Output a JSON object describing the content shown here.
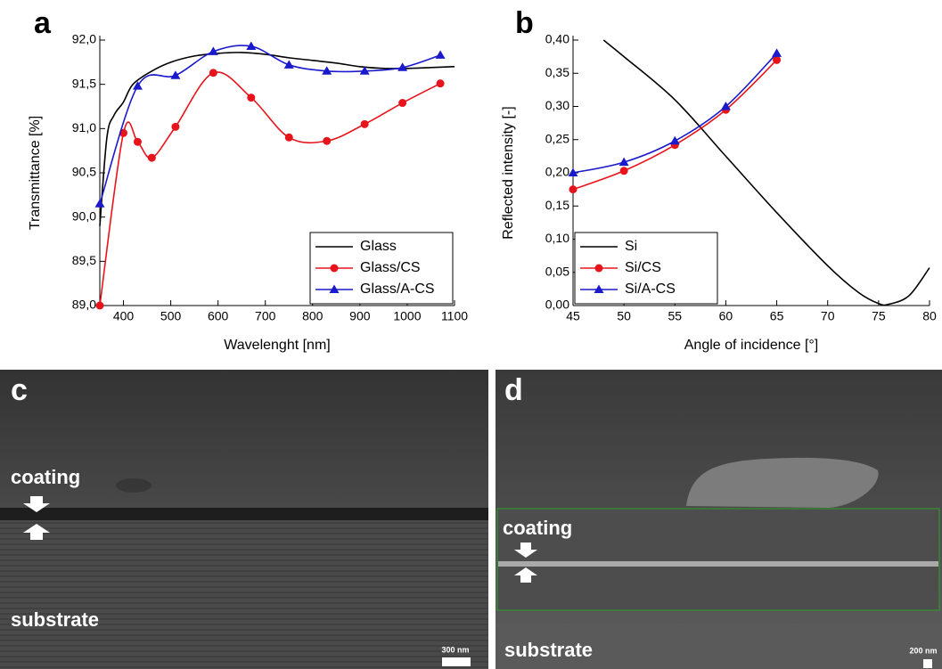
{
  "chart_data": [
    {
      "type": "line",
      "label": "a",
      "x_label": "Wavelenght [nm]",
      "y_label": "Transmittance [%]",
      "xlim": [
        350,
        1100
      ],
      "xticks": [
        400,
        500,
        600,
        700,
        800,
        900,
        1000,
        1100
      ],
      "ylim": [
        89.0,
        92.0
      ],
      "yticks": [
        {
          "value": 89.0,
          "label": "89,0"
        },
        {
          "value": 89.5,
          "label": "89,5"
        },
        {
          "value": 90.0,
          "label": "90,0"
        },
        {
          "value": 90.5,
          "label": "90,5"
        },
        {
          "value": 91.0,
          "label": "91,0"
        },
        {
          "value": 91.5,
          "label": "91,5"
        },
        {
          "value": 92.0,
          "label": "92,0"
        }
      ],
      "legend": "lower right",
      "series": [
        {
          "name": "Glass",
          "color": "#000000",
          "x": [
            350,
            365,
            380,
            400,
            420,
            460,
            500,
            550,
            600,
            650,
            700,
            750,
            800,
            850,
            900,
            950,
            1000,
            1050,
            1100
          ],
          "values": [
            89.9,
            90.9,
            91.15,
            91.3,
            91.5,
            91.65,
            91.75,
            91.82,
            91.85,
            91.86,
            91.84,
            91.8,
            91.77,
            91.74,
            91.7,
            91.68,
            91.68,
            91.69,
            91.7
          ]
        },
        {
          "name": "Glass/CS",
          "color": "#e8141b",
          "marker": "circle",
          "x": [
            350,
            400,
            430,
            460,
            510,
            590,
            670,
            750,
            830,
            910,
            990,
            1070
          ],
          "values": [
            89.0,
            90.95,
            90.85,
            90.67,
            91.02,
            91.63,
            91.35,
            90.9,
            90.86,
            91.05,
            91.29,
            91.51
          ]
        },
        {
          "name": "Glass/A-CS",
          "color": "#1a1acc",
          "marker": "triangle",
          "x": [
            350,
            430,
            510,
            590,
            670,
            750,
            830,
            910,
            990,
            1070
          ],
          "values": [
            90.15,
            91.48,
            91.6,
            91.87,
            91.93,
            91.72,
            91.65,
            91.65,
            91.69,
            91.83
          ]
        }
      ]
    },
    {
      "type": "line",
      "label": "b",
      "x_label": "Angle of incidence [°]",
      "y_label": "Reflected intensity [-]",
      "xlim": [
        45,
        80
      ],
      "xticks": [
        45,
        50,
        55,
        60,
        65,
        70,
        75,
        80
      ],
      "ylim": [
        0,
        0.4
      ],
      "yticks": [
        {
          "value": 0,
          "label": "0,00"
        },
        {
          "value": 0.05,
          "label": "0,05"
        },
        {
          "value": 0.1,
          "label": "0,10"
        },
        {
          "value": 0.15,
          "label": "0,15"
        },
        {
          "value": 0.2,
          "label": "0,20"
        },
        {
          "value": 0.25,
          "label": "0,25"
        },
        {
          "value": 0.3,
          "label": "0,30"
        },
        {
          "value": 0.35,
          "label": "0,35"
        },
        {
          "value": 0.4,
          "label": "0,40"
        }
      ],
      "legend": "lower left",
      "series": [
        {
          "name": "Si",
          "color": "#000000",
          "x": [
            48,
            50,
            55,
            60,
            65,
            70,
            73,
            75,
            76,
            78,
            80
          ],
          "values": [
            0.4,
            0.375,
            0.31,
            0.225,
            0.14,
            0.06,
            0.02,
            0.003,
            0.002,
            0.015,
            0.057
          ]
        },
        {
          "name": "Si/CS",
          "color": "#e8141b",
          "marker": "circle",
          "x": [
            45,
            50,
            55,
            60,
            65
          ],
          "values": [
            0.175,
            0.203,
            0.242,
            0.295,
            0.37
          ]
        },
        {
          "name": "Si/A-CS",
          "color": "#1a1acc",
          "marker": "triangle",
          "x": [
            45,
            50,
            55,
            60,
            65
          ],
          "values": [
            0.2,
            0.216,
            0.248,
            0.3,
            0.38
          ]
        }
      ]
    }
  ],
  "images": [
    {
      "label": "c",
      "coating": "coating",
      "substrate": "substrate",
      "scale": "300 nm"
    },
    {
      "label": "d",
      "coating": "coating",
      "substrate": "substrate",
      "scale": "200 nm"
    }
  ]
}
